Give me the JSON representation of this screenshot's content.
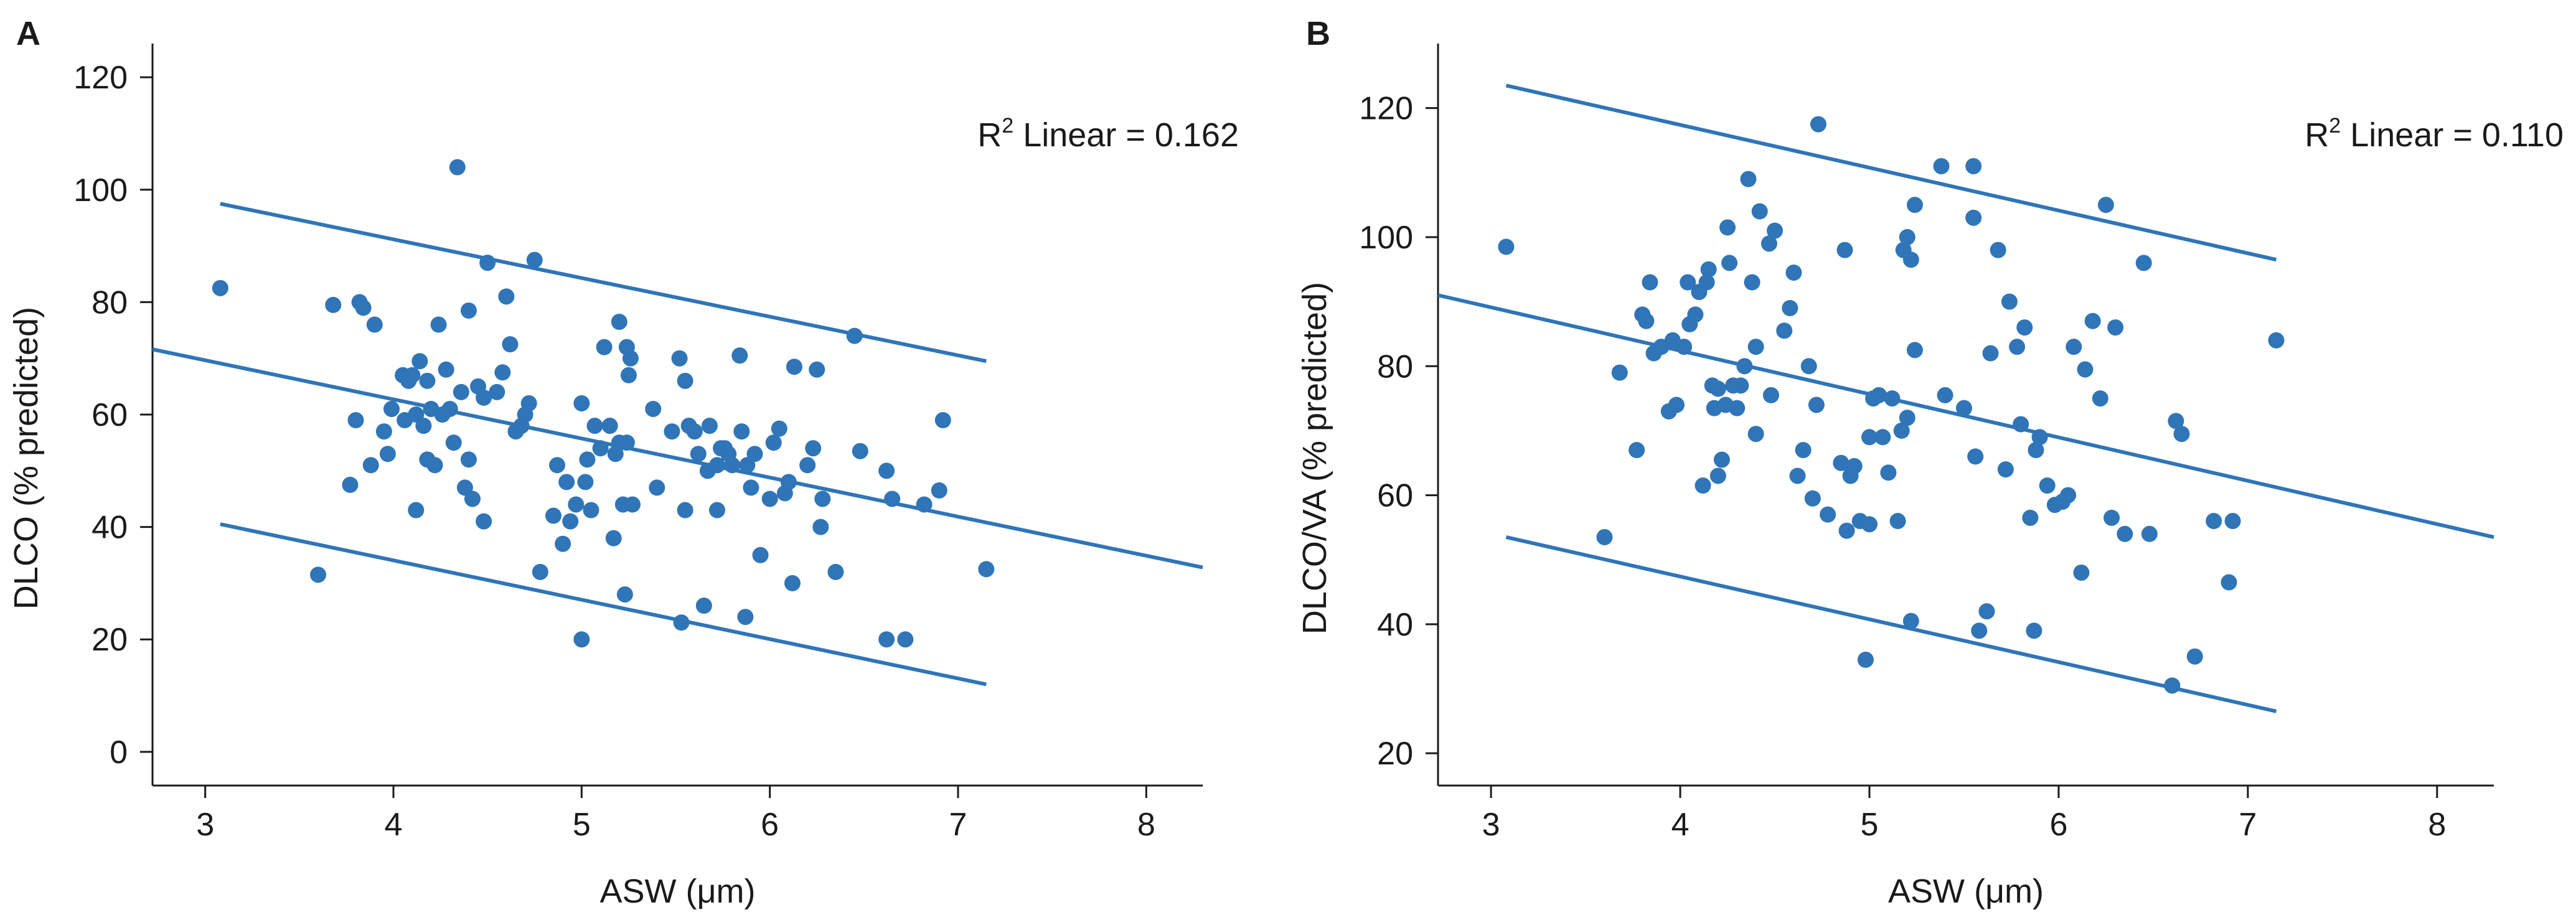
{
  "chart_data": [
    {
      "panel": "A",
      "type": "scatter",
      "title": "",
      "xlabel": "ASW (μm)",
      "ylabel": "DLCO (% predicted)",
      "xlim": [
        2.72,
        8.3
      ],
      "ylim": [
        -6,
        126
      ],
      "xticks": [
        3,
        4,
        5,
        6,
        7,
        8
      ],
      "yticks": [
        0,
        20,
        40,
        60,
        80,
        100,
        120
      ],
      "grid": false,
      "annotation": {
        "base": "R",
        "sup": "2",
        "text": " Linear = 0.162"
      },
      "color": "#2f75b8",
      "fit_lines": [
        {
          "name": "fit",
          "x": [
            2.72,
            8.3
          ],
          "y": [
            71.6,
            32.8
          ]
        },
        {
          "name": "upper-ci",
          "x": [
            3.08,
            7.15
          ],
          "y": [
            97.5,
            69.5
          ]
        },
        {
          "name": "lower-ci",
          "x": [
            3.08,
            7.15
          ],
          "y": [
            40.5,
            12.0
          ]
        }
      ],
      "points": [
        [
          3.08,
          82.5
        ],
        [
          3.6,
          31.5
        ],
        [
          3.68,
          79.5
        ],
        [
          3.77,
          47.5
        ],
        [
          3.8,
          59
        ],
        [
          3.82,
          80
        ],
        [
          3.84,
          79
        ],
        [
          3.88,
          51
        ],
        [
          3.9,
          76
        ],
        [
          3.95,
          57
        ],
        [
          3.97,
          53
        ],
        [
          3.99,
          61
        ],
        [
          4.05,
          67
        ],
        [
          4.06,
          59
        ],
        [
          4.08,
          66
        ],
        [
          4.1,
          67
        ],
        [
          4.12,
          43
        ],
        [
          4.12,
          60
        ],
        [
          4.14,
          69.5
        ],
        [
          4.16,
          58
        ],
        [
          4.18,
          66
        ],
        [
          4.18,
          52
        ],
        [
          4.2,
          61
        ],
        [
          4.22,
          51
        ],
        [
          4.24,
          76
        ],
        [
          4.26,
          60
        ],
        [
          4.28,
          68
        ],
        [
          4.3,
          61
        ],
        [
          4.32,
          55
        ],
        [
          4.34,
          104
        ],
        [
          4.36,
          64
        ],
        [
          4.38,
          47
        ],
        [
          4.4,
          52
        ],
        [
          4.4,
          78.5
        ],
        [
          4.42,
          45
        ],
        [
          4.45,
          65
        ],
        [
          4.48,
          63
        ],
        [
          4.48,
          41
        ],
        [
          4.5,
          87
        ],
        [
          4.55,
          64
        ],
        [
          4.58,
          67.5
        ],
        [
          4.6,
          81
        ],
        [
          4.62,
          72.5
        ],
        [
          4.65,
          57
        ],
        [
          4.68,
          58
        ],
        [
          4.7,
          60
        ],
        [
          4.72,
          62
        ],
        [
          4.75,
          87.5
        ],
        [
          4.78,
          32
        ],
        [
          4.85,
          42
        ],
        [
          4.87,
          51
        ],
        [
          4.9,
          37
        ],
        [
          4.92,
          48
        ],
        [
          4.94,
          41
        ],
        [
          4.97,
          44
        ],
        [
          5.0,
          20
        ],
        [
          5.0,
          62
        ],
        [
          5.02,
          48
        ],
        [
          5.03,
          52
        ],
        [
          5.05,
          43
        ],
        [
          5.07,
          58
        ],
        [
          5.1,
          54
        ],
        [
          5.12,
          72
        ],
        [
          5.15,
          58
        ],
        [
          5.17,
          38
        ],
        [
          5.18,
          53
        ],
        [
          5.2,
          55
        ],
        [
          5.2,
          76.5
        ],
        [
          5.22,
          44
        ],
        [
          5.23,
          28
        ],
        [
          5.24,
          55
        ],
        [
          5.24,
          72
        ],
        [
          5.25,
          67
        ],
        [
          5.26,
          70
        ],
        [
          5.27,
          44
        ],
        [
          5.38,
          61
        ],
        [
          5.4,
          47
        ],
        [
          5.48,
          57
        ],
        [
          5.52,
          70
        ],
        [
          5.53,
          23
        ],
        [
          5.55,
          43
        ],
        [
          5.55,
          66
        ],
        [
          5.57,
          58
        ],
        [
          5.6,
          57
        ],
        [
          5.62,
          53
        ],
        [
          5.65,
          26
        ],
        [
          5.67,
          50
        ],
        [
          5.68,
          58
        ],
        [
          5.72,
          43
        ],
        [
          5.72,
          51
        ],
        [
          5.74,
          54
        ],
        [
          5.76,
          54
        ],
        [
          5.78,
          53
        ],
        [
          5.8,
          51
        ],
        [
          5.84,
          70.5
        ],
        [
          5.85,
          57
        ],
        [
          5.87,
          24
        ],
        [
          5.88,
          51
        ],
        [
          5.9,
          47
        ],
        [
          5.92,
          53
        ],
        [
          5.95,
          35
        ],
        [
          6.0,
          45
        ],
        [
          6.02,
          55
        ],
        [
          6.05,
          57.5
        ],
        [
          6.08,
          46
        ],
        [
          6.1,
          48
        ],
        [
          6.12,
          30
        ],
        [
          6.13,
          68.5
        ],
        [
          6.2,
          51
        ],
        [
          6.23,
          54
        ],
        [
          6.25,
          68
        ],
        [
          6.27,
          40
        ],
        [
          6.28,
          45
        ],
        [
          6.35,
          32
        ],
        [
          6.45,
          74
        ],
        [
          6.48,
          53.5
        ],
        [
          6.62,
          50
        ],
        [
          6.62,
          20
        ],
        [
          6.65,
          45
        ],
        [
          6.72,
          20
        ],
        [
          6.82,
          44
        ],
        [
          6.9,
          46.5
        ],
        [
          6.92,
          59
        ],
        [
          7.15,
          32.5
        ]
      ]
    },
    {
      "panel": "B",
      "type": "scatter",
      "title": "",
      "xlabel": "ASW (μm)",
      "ylabel": "DLCO/VA (% predicted)",
      "xlim": [
        2.72,
        8.3
      ],
      "ylim": [
        15,
        130
      ],
      "xticks": [
        3,
        4,
        5,
        6,
        7,
        8
      ],
      "yticks": [
        20,
        40,
        60,
        80,
        100,
        120
      ],
      "grid": false,
      "annotation": {
        "base": "R",
        "sup": "2",
        "text": " Linear = 0.110"
      },
      "color": "#2f75b8",
      "fit_lines": [
        {
          "name": "fit",
          "x": [
            2.72,
            8.3
          ],
          "y": [
            91.0,
            53.5
          ]
        },
        {
          "name": "upper-ci",
          "x": [
            3.08,
            7.15
          ],
          "y": [
            123.5,
            96.5
          ]
        },
        {
          "name": "lower-ci",
          "x": [
            3.08,
            7.15
          ],
          "y": [
            53.5,
            26.5
          ]
        }
      ],
      "points": [
        [
          3.08,
          98.5
        ],
        [
          3.6,
          53.5
        ],
        [
          3.68,
          79
        ],
        [
          3.77,
          67
        ],
        [
          3.8,
          88
        ],
        [
          3.82,
          87
        ],
        [
          3.84,
          93
        ],
        [
          3.86,
          82
        ],
        [
          3.9,
          83
        ],
        [
          3.94,
          73
        ],
        [
          3.96,
          84
        ],
        [
          3.98,
          74
        ],
        [
          4.02,
          83
        ],
        [
          4.04,
          93
        ],
        [
          4.05,
          86.5
        ],
        [
          4.08,
          88
        ],
        [
          4.1,
          91.5
        ],
        [
          4.12,
          61.5
        ],
        [
          4.14,
          93
        ],
        [
          4.15,
          95
        ],
        [
          4.17,
          77
        ],
        [
          4.18,
          73.5
        ],
        [
          4.2,
          63
        ],
        [
          4.2,
          76.5
        ],
        [
          4.22,
          65.5
        ],
        [
          4.24,
          74
        ],
        [
          4.25,
          101.5
        ],
        [
          4.26,
          96
        ],
        [
          4.28,
          77
        ],
        [
          4.3,
          73.5
        ],
        [
          4.32,
          77
        ],
        [
          4.34,
          80
        ],
        [
          4.36,
          109
        ],
        [
          4.38,
          93
        ],
        [
          4.4,
          69.5
        ],
        [
          4.4,
          83
        ],
        [
          4.42,
          104
        ],
        [
          4.47,
          99
        ],
        [
          4.48,
          75.5
        ],
        [
          4.5,
          101
        ],
        [
          4.55,
          85.5
        ],
        [
          4.58,
          89
        ],
        [
          4.6,
          94.5
        ],
        [
          4.62,
          63
        ],
        [
          4.65,
          67
        ],
        [
          4.68,
          80
        ],
        [
          4.7,
          59.5
        ],
        [
          4.72,
          74
        ],
        [
          4.73,
          117.5
        ],
        [
          4.78,
          57
        ],
        [
          4.85,
          65
        ],
        [
          4.87,
          98
        ],
        [
          4.88,
          54.5
        ],
        [
          4.9,
          63
        ],
        [
          4.92,
          64.5
        ],
        [
          4.95,
          56
        ],
        [
          4.98,
          34.5
        ],
        [
          5.0,
          69
        ],
        [
          5.0,
          55.5
        ],
        [
          5.02,
          75
        ],
        [
          5.05,
          75.5
        ],
        [
          5.07,
          69
        ],
        [
          5.1,
          63.5
        ],
        [
          5.12,
          75
        ],
        [
          5.15,
          56
        ],
        [
          5.17,
          70
        ],
        [
          5.18,
          98
        ],
        [
          5.2,
          100
        ],
        [
          5.2,
          72
        ],
        [
          5.22,
          40.5
        ],
        [
          5.22,
          96.5
        ],
        [
          5.24,
          82.5
        ],
        [
          5.24,
          105
        ],
        [
          5.38,
          111
        ],
        [
          5.4,
          75.5
        ],
        [
          5.5,
          73.5
        ],
        [
          5.55,
          111
        ],
        [
          5.55,
          103
        ],
        [
          5.56,
          66
        ],
        [
          5.58,
          39
        ],
        [
          5.62,
          42
        ],
        [
          5.64,
          82
        ],
        [
          5.68,
          98
        ],
        [
          5.72,
          64
        ],
        [
          5.74,
          90
        ],
        [
          5.78,
          83
        ],
        [
          5.8,
          71
        ],
        [
          5.82,
          86
        ],
        [
          5.85,
          56.5
        ],
        [
          5.87,
          39
        ],
        [
          5.88,
          67
        ],
        [
          5.9,
          69
        ],
        [
          5.94,
          61.5
        ],
        [
          5.98,
          58.5
        ],
        [
          6.02,
          59
        ],
        [
          6.05,
          60
        ],
        [
          6.08,
          83
        ],
        [
          6.12,
          48
        ],
        [
          6.14,
          79.5
        ],
        [
          6.18,
          87
        ],
        [
          6.22,
          75
        ],
        [
          6.25,
          105
        ],
        [
          6.28,
          56.5
        ],
        [
          6.3,
          86
        ],
        [
          6.35,
          54
        ],
        [
          6.45,
          96
        ],
        [
          6.48,
          54
        ],
        [
          6.6,
          30.5
        ],
        [
          6.62,
          71.5
        ],
        [
          6.65,
          69.5
        ],
        [
          6.72,
          35
        ],
        [
          6.82,
          56
        ],
        [
          6.9,
          46.5
        ],
        [
          6.92,
          56
        ],
        [
          7.15,
          84
        ]
      ]
    }
  ]
}
